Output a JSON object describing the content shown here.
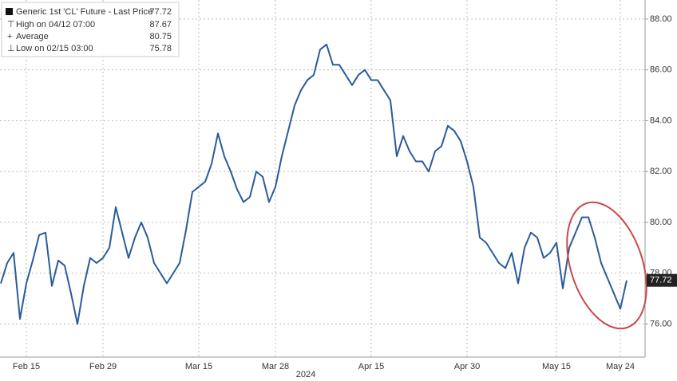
{
  "chart_data": {
    "type": "line",
    "x_group_label": "2024",
    "categories": [
      null,
      null,
      null,
      null,
      "Feb 15",
      null,
      null,
      null,
      null,
      null,
      null,
      null,
      null,
      null,
      null,
      null,
      "Feb 29",
      null,
      null,
      null,
      null,
      null,
      null,
      null,
      null,
      null,
      null,
      null,
      null,
      null,
      null,
      "Mar 15",
      null,
      null,
      null,
      null,
      null,
      null,
      null,
      null,
      null,
      null,
      null,
      "Mar 28",
      null,
      null,
      null,
      null,
      null,
      null,
      null,
      null,
      null,
      null,
      null,
      null,
      null,
      null,
      "Apr 15",
      null,
      null,
      null,
      null,
      null,
      null,
      null,
      null,
      null,
      null,
      null,
      null,
      null,
      null,
      "Apr 30",
      null,
      null,
      null,
      null,
      null,
      null,
      null,
      null,
      null,
      null,
      null,
      null,
      null,
      "May 15",
      null,
      null,
      null,
      null,
      null,
      null,
      null,
      null,
      null,
      "May 24",
      null
    ],
    "series": [
      {
        "name": "Generic 1st 'CL' Future - Last Price",
        "color": "#2a5b9c",
        "values": [
          77.6,
          78.4,
          78.8,
          76.2,
          77.6,
          78.5,
          79.5,
          79.6,
          77.5,
          78.5,
          78.3,
          77.2,
          76.0,
          77.5,
          78.6,
          78.4,
          78.6,
          79.0,
          80.6,
          79.6,
          78.6,
          79.4,
          80.0,
          79.4,
          78.4,
          78.0,
          77.6,
          78.0,
          78.4,
          79.7,
          81.2,
          81.4,
          81.6,
          82.3,
          83.5,
          82.6,
          82.0,
          81.3,
          80.8,
          81.0,
          82.0,
          81.8,
          80.8,
          81.4,
          82.6,
          83.6,
          84.6,
          85.2,
          85.6,
          85.8,
          86.8,
          87.0,
          86.2,
          86.2,
          85.8,
          85.4,
          85.8,
          86.0,
          85.6,
          85.6,
          85.2,
          84.8,
          82.6,
          83.4,
          82.8,
          82.4,
          82.4,
          82.0,
          82.8,
          83.0,
          83.8,
          83.6,
          83.2,
          82.4,
          81.4,
          79.4,
          79.2,
          78.8,
          78.4,
          78.2,
          78.8,
          77.6,
          79.0,
          79.6,
          79.4,
          78.6,
          78.8,
          79.2,
          77.4,
          79.0,
          79.6,
          80.2,
          80.2,
          79.4,
          78.4,
          77.8,
          77.2,
          76.6,
          77.72
        ]
      }
    ],
    "last_price": 77.72,
    "stats": [
      {
        "label": "High on 04/12 07:00",
        "value": 87.67
      },
      {
        "label": "Average",
        "value": 80.75
      },
      {
        "label": "Low on 02/15 03:00",
        "value": 75.78
      }
    ],
    "ylim": [
      74.7,
      88.75
    ],
    "yticks": [
      {
        "value": 76,
        "label": "76.00"
      },
      {
        "value": 78,
        "label": "78.00"
      },
      {
        "value": 80,
        "label": "80.00"
      },
      {
        "value": 82,
        "label": "82.00"
      },
      {
        "value": 84,
        "label": "84.00"
      },
      {
        "value": 86,
        "label": "86.00"
      },
      {
        "value": 88,
        "label": "88.00"
      }
    ],
    "grid": true
  }
}
